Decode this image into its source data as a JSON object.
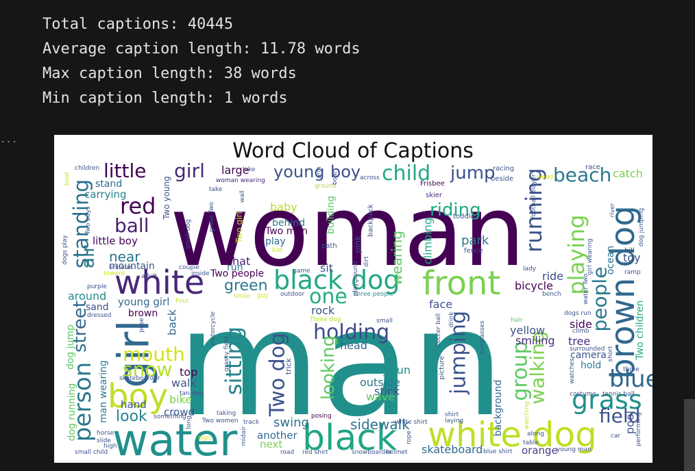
{
  "output": {
    "lines": [
      "Total captions: 40445",
      "Average caption length: 11.78 words",
      "Max caption length: 38 words",
      "Min caption length: 1 words"
    ],
    "cell_marker": "..."
  },
  "figure": {
    "title": "Word Cloud of Captions",
    "words": [
      {
        "text": "woman",
        "color": "#440154"
      },
      {
        "text": "man",
        "color": "#21908c"
      },
      {
        "text": "water",
        "color": "#21908c"
      },
      {
        "text": "white dog",
        "color": "#bddf26"
      },
      {
        "text": "black",
        "color": "#21a585"
      },
      {
        "text": "white",
        "color": "#482878"
      },
      {
        "text": "girl",
        "color": "#31688e"
      },
      {
        "text": "boy",
        "color": "#bddf26"
      },
      {
        "text": "front",
        "color": "#7ad151"
      },
      {
        "text": "black dog",
        "color": "#22a884"
      },
      {
        "text": "brown dog",
        "color": "#31688e"
      },
      {
        "text": "child",
        "color": "#22a884"
      },
      {
        "text": "jump",
        "color": "#3b528b"
      },
      {
        "text": "beach",
        "color": "#2a788e"
      },
      {
        "text": "little",
        "color": "#440154"
      },
      {
        "text": "girl",
        "color": "#482878"
      },
      {
        "text": "young",
        "color": "#3b528b"
      },
      {
        "text": "boy",
        "color": "#3e4a89"
      },
      {
        "text": "red",
        "color": "#440154"
      },
      {
        "text": "ball",
        "color": "#481f70"
      },
      {
        "text": "standing",
        "color": "#2c728e"
      },
      {
        "text": "riding",
        "color": "#22a884"
      },
      {
        "text": "running",
        "color": "#3b528b"
      },
      {
        "text": "playing",
        "color": "#7ad151"
      },
      {
        "text": "people",
        "color": "#2a788e"
      },
      {
        "text": "grass",
        "color": "#21908c"
      },
      {
        "text": "blue",
        "color": "#31688e"
      },
      {
        "text": "field",
        "color": "#3b528b"
      },
      {
        "text": "mouth",
        "color": "#d2e21b"
      },
      {
        "text": "snow",
        "color": "#b5de2b"
      },
      {
        "text": "person",
        "color": "#2a788e"
      },
      {
        "text": "street",
        "color": "#31688e"
      },
      {
        "text": "holding",
        "color": "#3e4a89"
      },
      {
        "text": "one",
        "color": "#27ad81"
      },
      {
        "text": "sitting",
        "color": "#26828e"
      },
      {
        "text": "Two dog",
        "color": "#3b528b"
      },
      {
        "text": "looking",
        "color": "#5ec962"
      },
      {
        "text": "jumping",
        "color": "#3b528b"
      },
      {
        "text": "group",
        "color": "#5ec962"
      },
      {
        "text": "walking",
        "color": "#7ad151"
      },
      {
        "text": "look",
        "color": "#26828e"
      },
      {
        "text": "swing",
        "color": "#2c728e"
      },
      {
        "text": "sidewalk",
        "color": "#2c728e"
      },
      {
        "text": "skateboard",
        "color": "#31688e"
      },
      {
        "text": "orange",
        "color": "#443983"
      },
      {
        "text": "air",
        "color": "#2a788e"
      },
      {
        "text": "near",
        "color": "#2c728e"
      },
      {
        "text": "green",
        "color": "#2a788e"
      },
      {
        "text": "hat",
        "color": "#481f70"
      },
      {
        "text": "run",
        "color": "#2a788e"
      },
      {
        "text": "park",
        "color": "#2a788e"
      },
      {
        "text": "wearing",
        "color": "#5ec962"
      },
      {
        "text": "climbing",
        "color": "#22a884"
      },
      {
        "text": "yellow",
        "color": "#3b528b"
      },
      {
        "text": "smiling",
        "color": "#472d7b"
      },
      {
        "text": "tree",
        "color": "#472d7b"
      },
      {
        "text": "camera",
        "color": "#3b528b"
      },
      {
        "text": "hold",
        "color": "#2a788e"
      },
      {
        "text": "bicycle",
        "color": "#440154"
      },
      {
        "text": "ride",
        "color": "#3e4a89"
      },
      {
        "text": "toy",
        "color": "#3b528b"
      },
      {
        "text": "ocean",
        "color": "#2c728e"
      },
      {
        "text": "catch",
        "color": "#7ad151"
      },
      {
        "text": "stand",
        "color": "#31688e"
      },
      {
        "text": "carrying",
        "color": "#26828e"
      },
      {
        "text": "little boy",
        "color": "#440154"
      },
      {
        "text": "mountain",
        "color": "#3b528b"
      },
      {
        "text": "around",
        "color": "#21908c"
      },
      {
        "text": "sand",
        "color": "#3b528b"
      },
      {
        "text": "brown",
        "color": "#440154"
      },
      {
        "text": "young girl",
        "color": "#31688e"
      },
      {
        "text": "Two people",
        "color": "#440154"
      },
      {
        "text": "sit",
        "color": "#3b528b"
      },
      {
        "text": "rock",
        "color": "#3b528b"
      },
      {
        "text": "face",
        "color": "#3b528b"
      },
      {
        "text": "head",
        "color": "#31688e"
      },
      {
        "text": "dog run",
        "color": "#21908c"
      },
      {
        "text": "outside",
        "color": "#2a788e"
      },
      {
        "text": "stick",
        "color": "#3b528b"
      },
      {
        "text": "wave",
        "color": "#5ec962"
      },
      {
        "text": "top",
        "color": "#440154"
      },
      {
        "text": "walk",
        "color": "#3b528b"
      },
      {
        "text": "bike",
        "color": "#7ad151"
      },
      {
        "text": "crowd",
        "color": "#3b528b"
      },
      {
        "text": "hand",
        "color": "#3b528b"
      },
      {
        "text": "another",
        "color": "#31688e"
      },
      {
        "text": "next",
        "color": "#7ad151"
      },
      {
        "text": "large",
        "color": "#440154"
      },
      {
        "text": "baby",
        "color": "#b5de2b"
      },
      {
        "text": "behind",
        "color": "#2a788e"
      },
      {
        "text": "Two men",
        "color": "#440154"
      },
      {
        "text": "play",
        "color": "#31688e"
      },
      {
        "text": "side",
        "color": "#440154"
      },
      {
        "text": "pool",
        "color": "#3b528b"
      },
      {
        "text": "back",
        "color": "#31688e"
      },
      {
        "text": "man wearing",
        "color": "#2a788e"
      },
      {
        "text": "dog running",
        "color": "#5ec962"
      },
      {
        "text": "dog jump",
        "color": "#5ec962"
      },
      {
        "text": "Two children",
        "color": "#22a884"
      },
      {
        "text": "background",
        "color": "#31688e"
      },
      {
        "text": "building",
        "color": "#5ec962"
      },
      {
        "text": "Frisbee",
        "color": "#440154"
      },
      {
        "text": "skier",
        "color": "#482878"
      },
      {
        "text": "toddler",
        "color": "#3b528b"
      },
      {
        "text": "fence",
        "color": "#3b528b"
      },
      {
        "text": "path",
        "color": "#3b528b"
      },
      {
        "text": "kid",
        "color": "#d2e21b"
      },
      {
        "text": "lady",
        "color": "#3b528b"
      },
      {
        "text": "bench",
        "color": "#3b528b"
      },
      {
        "text": "racing",
        "color": "#3b528b"
      },
      {
        "text": "beside",
        "color": "#3b528b"
      },
      {
        "text": "race",
        "color": "#3b528b"
      },
      {
        "text": "wood",
        "color": "#d2e21b"
      },
      {
        "text": "hill",
        "color": "#3b528b"
      },
      {
        "text": "ramp",
        "color": "#3b528b"
      },
      {
        "text": "children",
        "color": "#3b528b"
      },
      {
        "text": "boat",
        "color": "#d2e21b"
      },
      {
        "text": "lake",
        "color": "#3b528b"
      },
      {
        "text": "woman wearing",
        "color": "#482878"
      },
      {
        "text": "take",
        "color": "#3b528b"
      },
      {
        "text": "ground",
        "color": "#b5de2b"
      },
      {
        "text": "across",
        "color": "#3b528b"
      },
      {
        "text": "small",
        "color": "#3b528b"
      },
      {
        "text": "hair",
        "color": "#5ec962"
      },
      {
        "text": "climb",
        "color": "#3b528b"
      },
      {
        "text": "surrounded",
        "color": "#3b528b"
      },
      {
        "text": "costume",
        "color": "#3b528b"
      },
      {
        "text": "tennis ball",
        "color": "#3b528b"
      },
      {
        "text": "dogs run",
        "color": "#3b528b"
      },
      {
        "text": "Three people",
        "color": "#21908c"
      },
      {
        "text": "Three dog",
        "color": "#b5de2b"
      },
      {
        "text": "smile",
        "color": "#d2e21b"
      },
      {
        "text": "guy",
        "color": "#d2e21b"
      },
      {
        "text": "outdoor",
        "color": "#3b528b"
      },
      {
        "text": "game",
        "color": "#3b528b"
      },
      {
        "text": "inside",
        "color": "#3b528b"
      },
      {
        "text": "couple",
        "color": "#3b528b"
      },
      {
        "text": "toward",
        "color": "#d2e21b"
      },
      {
        "text": "adult",
        "color": "#3b528b"
      },
      {
        "text": "purple",
        "color": "#3b528b"
      },
      {
        "text": "uniform",
        "color": "#3b528b"
      },
      {
        "text": "dressed",
        "color": "#3b528b"
      },
      {
        "text": "Four",
        "color": "#d2e21b"
      },
      {
        "text": "skateboarder",
        "color": "#3b528b"
      },
      {
        "text": "tan dog",
        "color": "#3b528b"
      },
      {
        "text": "something",
        "color": "#3b528b"
      },
      {
        "text": "taking",
        "color": "#3b528b"
      },
      {
        "text": "Two women",
        "color": "#3b528b"
      },
      {
        "text": "track",
        "color": "#3b528b"
      },
      {
        "text": "posing",
        "color": "#440154"
      },
      {
        "text": "white shirt",
        "color": "#3b528b"
      },
      {
        "text": "shirt",
        "color": "#3b528b"
      },
      {
        "text": "laying",
        "color": "#3b528b"
      },
      {
        "text": "along",
        "color": "#3b528b"
      },
      {
        "text": "table",
        "color": "#3b528b"
      },
      {
        "text": "car",
        "color": "#3b528b"
      },
      {
        "text": "young man",
        "color": "#3b528b"
      },
      {
        "text": "blue shirt",
        "color": "#3b528b"
      },
      {
        "text": "helmet",
        "color": "#3b528b"
      },
      {
        "text": "snowboarder",
        "color": "#3b528b"
      },
      {
        "text": "red shirt",
        "color": "#3b528b"
      },
      {
        "text": "road",
        "color": "#3b528b"
      },
      {
        "text": "sign",
        "color": "#d2e21b"
      },
      {
        "text": "horse",
        "color": "#3b528b"
      },
      {
        "text": "slide",
        "color": "#3b528b"
      },
      {
        "text": "high",
        "color": "#3b528b"
      },
      {
        "text": "small child",
        "color": "#3b528b"
      },
      {
        "text": "picture",
        "color": "#3b528b"
      },
      {
        "text": "trick",
        "color": "#3b528b"
      },
      {
        "text": "pink",
        "color": "#3b528b"
      },
      {
        "text": "backpack",
        "color": "#3b528b"
      },
      {
        "text": "dirt",
        "color": "#3b528b"
      },
      {
        "text": "playground",
        "color": "#3b528b"
      },
      {
        "text": "drink",
        "color": "#3b528b"
      },
      {
        "text": "sunglasses",
        "color": "#3b528b"
      },
      {
        "text": "soccer ball",
        "color": "#3b528b"
      },
      {
        "text": "motorcycle",
        "color": "#3b528b"
      },
      {
        "text": "pose",
        "color": "#3b528b"
      },
      {
        "text": "grassy field",
        "color": "#3b528b"
      },
      {
        "text": "Two young",
        "color": "#3b528b"
      },
      {
        "text": "small dog",
        "color": "#3b528b"
      },
      {
        "text": "grass Two",
        "color": "#3b528b"
      },
      {
        "text": "Two girl",
        "color": "#d2e21b"
      },
      {
        "text": "wall",
        "color": "#3b528b"
      },
      {
        "text": "football player",
        "color": "#3b528b"
      },
      {
        "text": "river",
        "color": "#3b528b"
      },
      {
        "text": "girl wearing",
        "color": "#3b528b"
      },
      {
        "text": "dog jumping",
        "color": "#3b528b"
      },
      {
        "text": "water Two",
        "color": "#3b528b"
      },
      {
        "text": "short",
        "color": "#3b528b"
      },
      {
        "text": "three",
        "color": "#3b528b"
      },
      {
        "text": "watches",
        "color": "#3b528b"
      },
      {
        "text": "performing",
        "color": "#3b528b"
      },
      {
        "text": "rope",
        "color": "#3b528b"
      },
      {
        "text": "midair",
        "color": "#3b528b"
      },
      {
        "text": "long",
        "color": "#3b528b"
      },
      {
        "text": "dogs play",
        "color": "#3b528b"
      },
      {
        "text": "Two boys",
        "color": "#3b528b"
      },
      {
        "text": "boat",
        "color": "#3b528b"
      },
      {
        "text": "arm",
        "color": "#3b528b"
      },
      {
        "text": "watching",
        "color": "#d2e21b"
      }
    ]
  }
}
